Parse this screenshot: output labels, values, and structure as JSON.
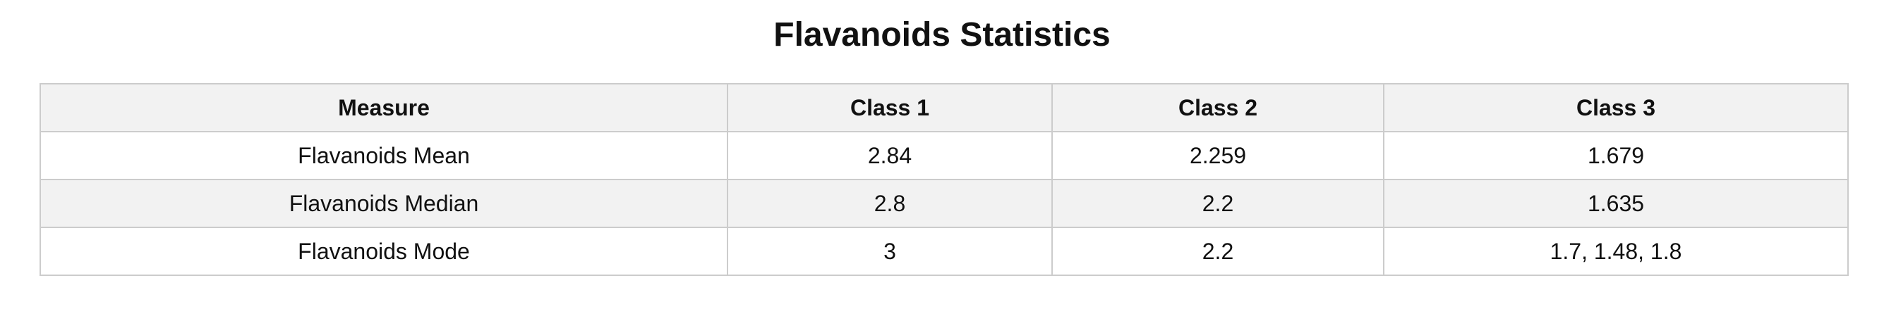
{
  "title": "Flavanoids Statistics",
  "table": {
    "headers": [
      "Measure",
      "Class 1",
      "Class 2",
      "Class 3"
    ],
    "rows": [
      [
        "Flavanoids Mean",
        "2.84",
        "2.259",
        "1.679"
      ],
      [
        "Flavanoids Median",
        "2.8",
        "2.2",
        "1.635"
      ],
      [
        "Flavanoids Mode",
        "3",
        "2.2",
        "1.7, 1.48, 1.8"
      ]
    ]
  }
}
